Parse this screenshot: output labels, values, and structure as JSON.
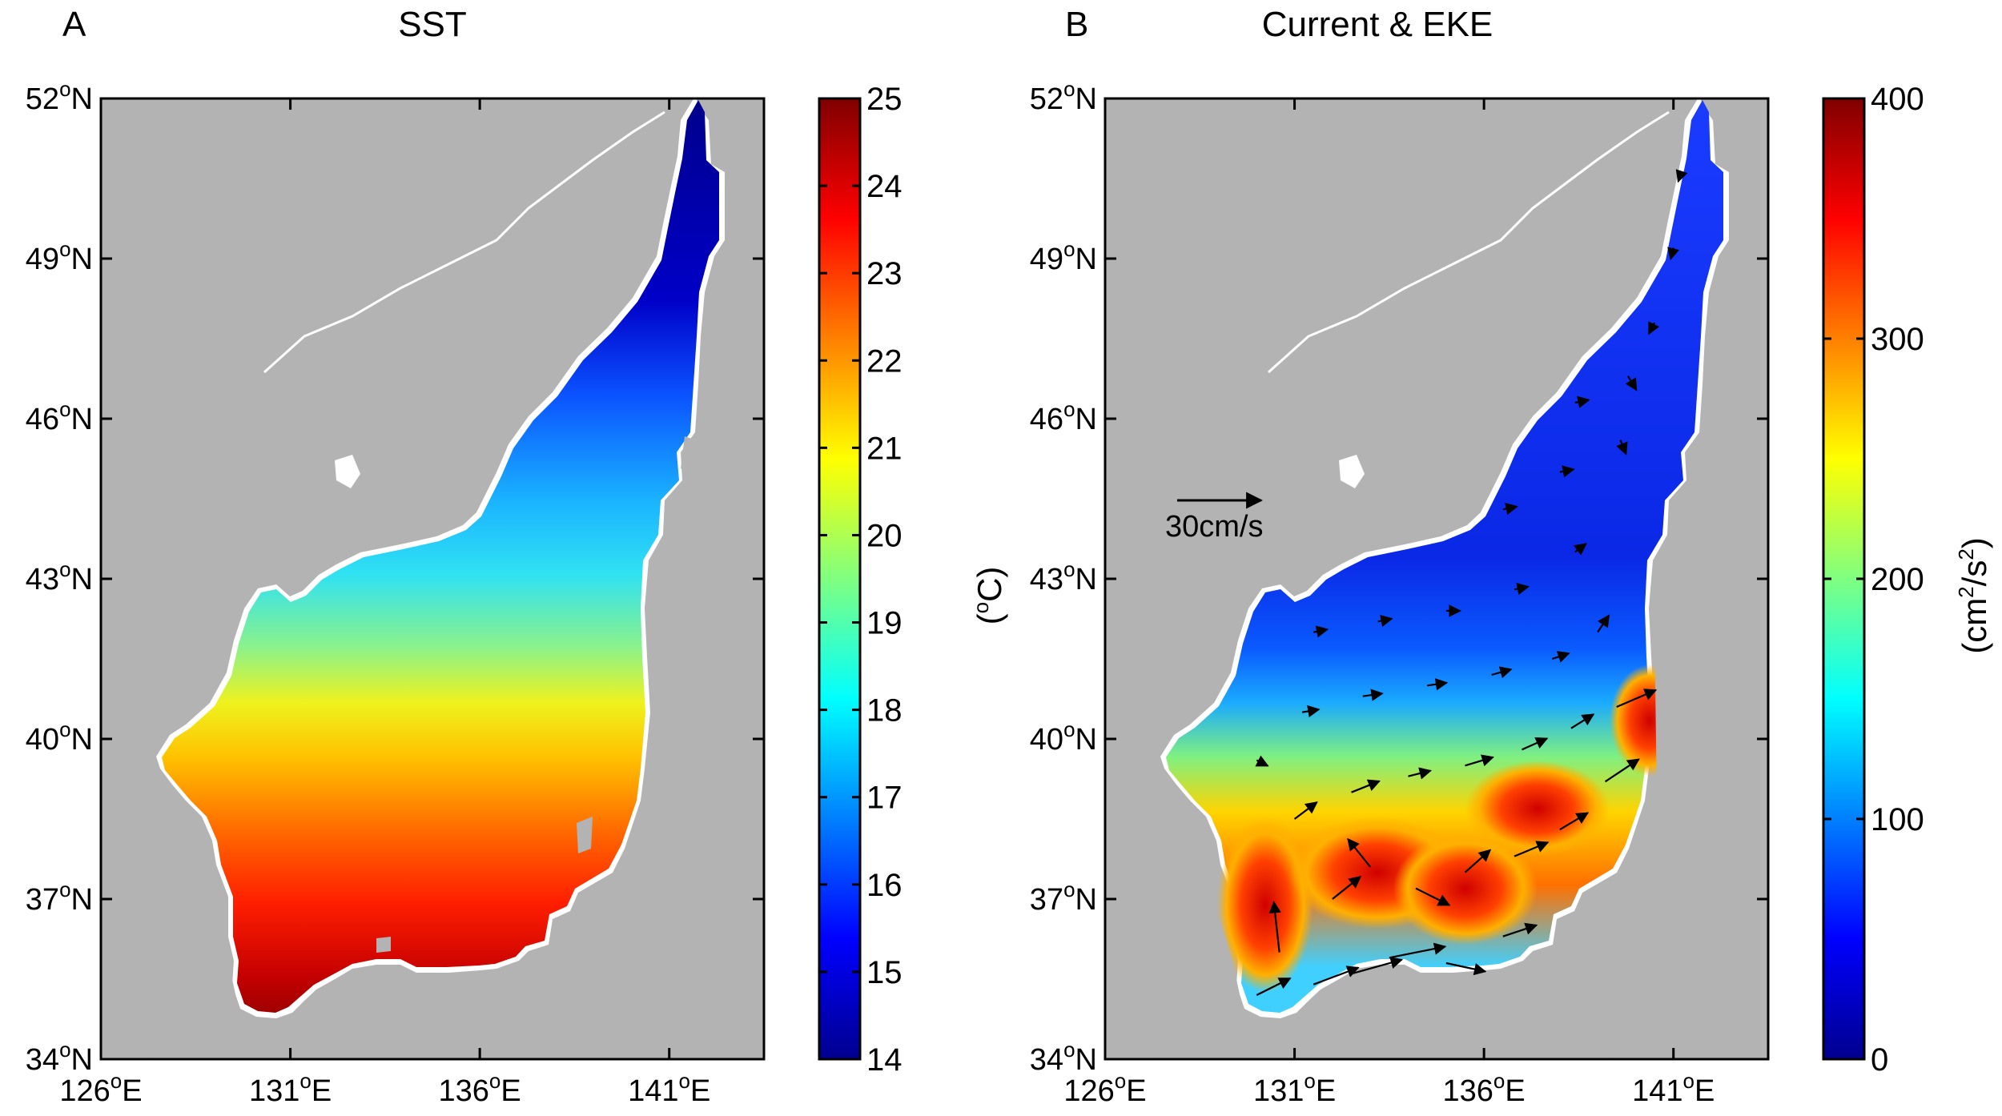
{
  "panels": [
    {
      "letter": "A",
      "title": "SST",
      "colorbar": {
        "ticks": [
          "14",
          "15",
          "16",
          "17",
          "18",
          "19",
          "20",
          "21",
          "22",
          "23",
          "24",
          "25"
        ],
        "min": 14,
        "max": 25,
        "label": "(°C)",
        "label_base": "(",
        "label_sup": "o",
        "label_rest": "C)"
      }
    },
    {
      "letter": "B",
      "title": "Current & EKE",
      "colorbar": {
        "ticks": [
          "0",
          "100",
          "200",
          "300",
          "400"
        ],
        "min": 0,
        "max": 400,
        "label": "(cm²/s²)",
        "label_base": "(cm",
        "label_sup1": "2",
        "label_mid": "/s",
        "label_sup2": "2",
        "label_end": ")"
      },
      "scale_arrow": {
        "label": "30cm/s",
        "speed_cm_s": 30
      }
    }
  ],
  "axes": {
    "x_ticks": [
      {
        "value": 126,
        "num": "126",
        "deg": "o",
        "hemi": "E"
      },
      {
        "value": 131,
        "num": "131",
        "deg": "o",
        "hemi": "E"
      },
      {
        "value": 136,
        "num": "136",
        "deg": "o",
        "hemi": "E"
      },
      {
        "value": 141,
        "num": "141",
        "deg": "o",
        "hemi": "E"
      }
    ],
    "y_ticks": [
      {
        "value": 52,
        "num": "52",
        "deg": "o",
        "hemi": "N"
      },
      {
        "value": 49,
        "num": "49",
        "deg": "o",
        "hemi": "N"
      },
      {
        "value": 46,
        "num": "46",
        "deg": "o",
        "hemi": "N"
      },
      {
        "value": 43,
        "num": "43",
        "deg": "o",
        "hemi": "N"
      },
      {
        "value": 40,
        "num": "40",
        "deg": "o",
        "hemi": "N"
      },
      {
        "value": 37,
        "num": "37",
        "deg": "o",
        "hemi": "N"
      },
      {
        "value": 34,
        "num": "34",
        "deg": "o",
        "hemi": "N"
      }
    ]
  },
  "colors": {
    "land": "#b3b3b3",
    "sea_background": "#ffffff",
    "frame": "#000000",
    "arrow": "#000000"
  },
  "chart_data": [
    {
      "type": "heatmap",
      "title": "SST",
      "variable": "Sea surface temperature",
      "unit": "°C",
      "xlim": [
        126,
        143.5
      ],
      "ylim": [
        34,
        52
      ],
      "x_unit": "°E",
      "y_unit": "°N",
      "colormap": "jet",
      "value_range": [
        14,
        25
      ],
      "samples": [
        {
          "lon": 130.2,
          "lat": 34.8,
          "value": 24.8
        },
        {
          "lon": 132.5,
          "lat": 35.8,
          "value": 24.3
        },
        {
          "lon": 134.0,
          "lat": 37.0,
          "value": 23.6
        },
        {
          "lon": 136.5,
          "lat": 38.0,
          "value": 23.2
        },
        {
          "lon": 138.8,
          "lat": 38.8,
          "value": 22.6
        },
        {
          "lon": 129.0,
          "lat": 39.3,
          "value": 20.5
        },
        {
          "lon": 133.0,
          "lat": 40.0,
          "value": 20.6
        },
        {
          "lon": 137.0,
          "lat": 40.3,
          "value": 21.0
        },
        {
          "lon": 130.5,
          "lat": 41.5,
          "value": 19.0
        },
        {
          "lon": 135.0,
          "lat": 42.0,
          "value": 18.5
        },
        {
          "lon": 137.5,
          "lat": 43.2,
          "value": 17.9
        },
        {
          "lon": 139.2,
          "lat": 44.8,
          "value": 17.2
        },
        {
          "lon": 138.0,
          "lat": 46.5,
          "value": 15.8
        },
        {
          "lon": 140.2,
          "lat": 48.0,
          "value": 14.5
        },
        {
          "lon": 140.8,
          "lat": 50.5,
          "value": 14.1
        }
      ]
    },
    {
      "type": "heatmap",
      "title": "Current & EKE",
      "variable": "Eddy kinetic energy",
      "unit": "cm²/s²",
      "xlim": [
        126,
        143.5
      ],
      "ylim": [
        34,
        52
      ],
      "x_unit": "°E",
      "y_unit": "°N",
      "colormap": "jet",
      "value_range": [
        0,
        400
      ],
      "samples": [
        {
          "lon": 130.0,
          "lat": 36.5,
          "value": 380
        },
        {
          "lon": 130.5,
          "lat": 35.2,
          "value": 150
        },
        {
          "lon": 132.0,
          "lat": 37.5,
          "value": 320
        },
        {
          "lon": 133.5,
          "lat": 37.0,
          "value": 340
        },
        {
          "lon": 134.5,
          "lat": 36.7,
          "value": 360
        },
        {
          "lon": 136.0,
          "lat": 38.0,
          "value": 350
        },
        {
          "lon": 137.5,
          "lat": 38.6,
          "value": 330
        },
        {
          "lon": 139.2,
          "lat": 39.8,
          "value": 250
        },
        {
          "lon": 133.0,
          "lat": 39.3,
          "value": 160
        },
        {
          "lon": 131.0,
          "lat": 41.0,
          "value": 30
        },
        {
          "lon": 135.0,
          "lat": 42.5,
          "value": 20
        },
        {
          "lon": 138.5,
          "lat": 45.0,
          "value": 40
        },
        {
          "lon": 140.6,
          "lat": 48.5,
          "value": 30
        },
        {
          "lon": 137.0,
          "lat": 36.7,
          "value": 200
        }
      ],
      "current_vectors_unit": "cm/s",
      "current_vectors": [
        {
          "lon": 130.0,
          "lat": 35.2,
          "u": 12,
          "v": 6
        },
        {
          "lon": 130.6,
          "lat": 36.0,
          "u": -2,
          "v": 18
        },
        {
          "lon": 131.5,
          "lat": 35.4,
          "u": 16,
          "v": 6
        },
        {
          "lon": 132.5,
          "lat": 35.6,
          "u": 18,
          "v": 5
        },
        {
          "lon": 133.5,
          "lat": 35.9,
          "u": 20,
          "v": 4
        },
        {
          "lon": 135.0,
          "lat": 35.8,
          "u": 14,
          "v": -3
        },
        {
          "lon": 136.5,
          "lat": 36.3,
          "u": 12,
          "v": 4
        },
        {
          "lon": 132.0,
          "lat": 37.0,
          "u": 10,
          "v": 8
        },
        {
          "lon": 133.0,
          "lat": 37.6,
          "u": -8,
          "v": 10
        },
        {
          "lon": 134.2,
          "lat": 37.2,
          "u": 12,
          "v": -6
        },
        {
          "lon": 135.5,
          "lat": 37.5,
          "u": 9,
          "v": 8
        },
        {
          "lon": 136.8,
          "lat": 37.8,
          "u": 12,
          "v": 5
        },
        {
          "lon": 138.0,
          "lat": 38.3,
          "u": 10,
          "v": 6
        },
        {
          "lon": 139.2,
          "lat": 39.2,
          "u": 12,
          "v": 8
        },
        {
          "lon": 139.5,
          "lat": 40.6,
          "u": 14,
          "v": 6
        },
        {
          "lon": 131.0,
          "lat": 38.5,
          "u": 8,
          "v": 6
        },
        {
          "lon": 132.5,
          "lat": 39.0,
          "u": 10,
          "v": 4
        },
        {
          "lon": 134.0,
          "lat": 39.3,
          "u": 8,
          "v": 2
        },
        {
          "lon": 135.5,
          "lat": 39.5,
          "u": 10,
          "v": 3
        },
        {
          "lon": 137.0,
          "lat": 39.8,
          "u": 9,
          "v": 4
        },
        {
          "lon": 138.3,
          "lat": 40.2,
          "u": 8,
          "v": 5
        },
        {
          "lon": 130.0,
          "lat": 39.6,
          "u": 4,
          "v": -2
        },
        {
          "lon": 131.2,
          "lat": 40.5,
          "u": 6,
          "v": 1
        },
        {
          "lon": 132.8,
          "lat": 40.8,
          "u": 7,
          "v": 1
        },
        {
          "lon": 134.5,
          "lat": 41.0,
          "u": 7,
          "v": 1
        },
        {
          "lon": 136.2,
          "lat": 41.2,
          "u": 7,
          "v": 2
        },
        {
          "lon": 137.8,
          "lat": 41.5,
          "u": 6,
          "v": 2
        },
        {
          "lon": 139.0,
          "lat": 42.0,
          "u": 4,
          "v": 6
        },
        {
          "lon": 131.5,
          "lat": 42.0,
          "u": 5,
          "v": 1
        },
        {
          "lon": 133.2,
          "lat": 42.2,
          "u": 5,
          "v": 1
        },
        {
          "lon": 135.0,
          "lat": 42.4,
          "u": 5,
          "v": 0
        },
        {
          "lon": 136.8,
          "lat": 42.8,
          "u": 5,
          "v": 1
        },
        {
          "lon": 138.4,
          "lat": 43.5,
          "u": 4,
          "v": 3
        },
        {
          "lon": 136.5,
          "lat": 44.3,
          "u": 5,
          "v": 1
        },
        {
          "lon": 138.0,
          "lat": 45.0,
          "u": 5,
          "v": 1
        },
        {
          "lon": 139.6,
          "lat": 45.6,
          "u": 2,
          "v": -5
        },
        {
          "lon": 138.4,
          "lat": 46.3,
          "u": 5,
          "v": 1
        },
        {
          "lon": 139.8,
          "lat": 46.8,
          "u": 3,
          "v": -5
        },
        {
          "lon": 140.5,
          "lat": 47.8,
          "u": -2,
          "v": -4
        },
        {
          "lon": 141.0,
          "lat": 49.2,
          "u": -1,
          "v": -4
        },
        {
          "lon": 141.2,
          "lat": 50.6,
          "u": -1,
          "v": -3
        }
      ]
    }
  ]
}
